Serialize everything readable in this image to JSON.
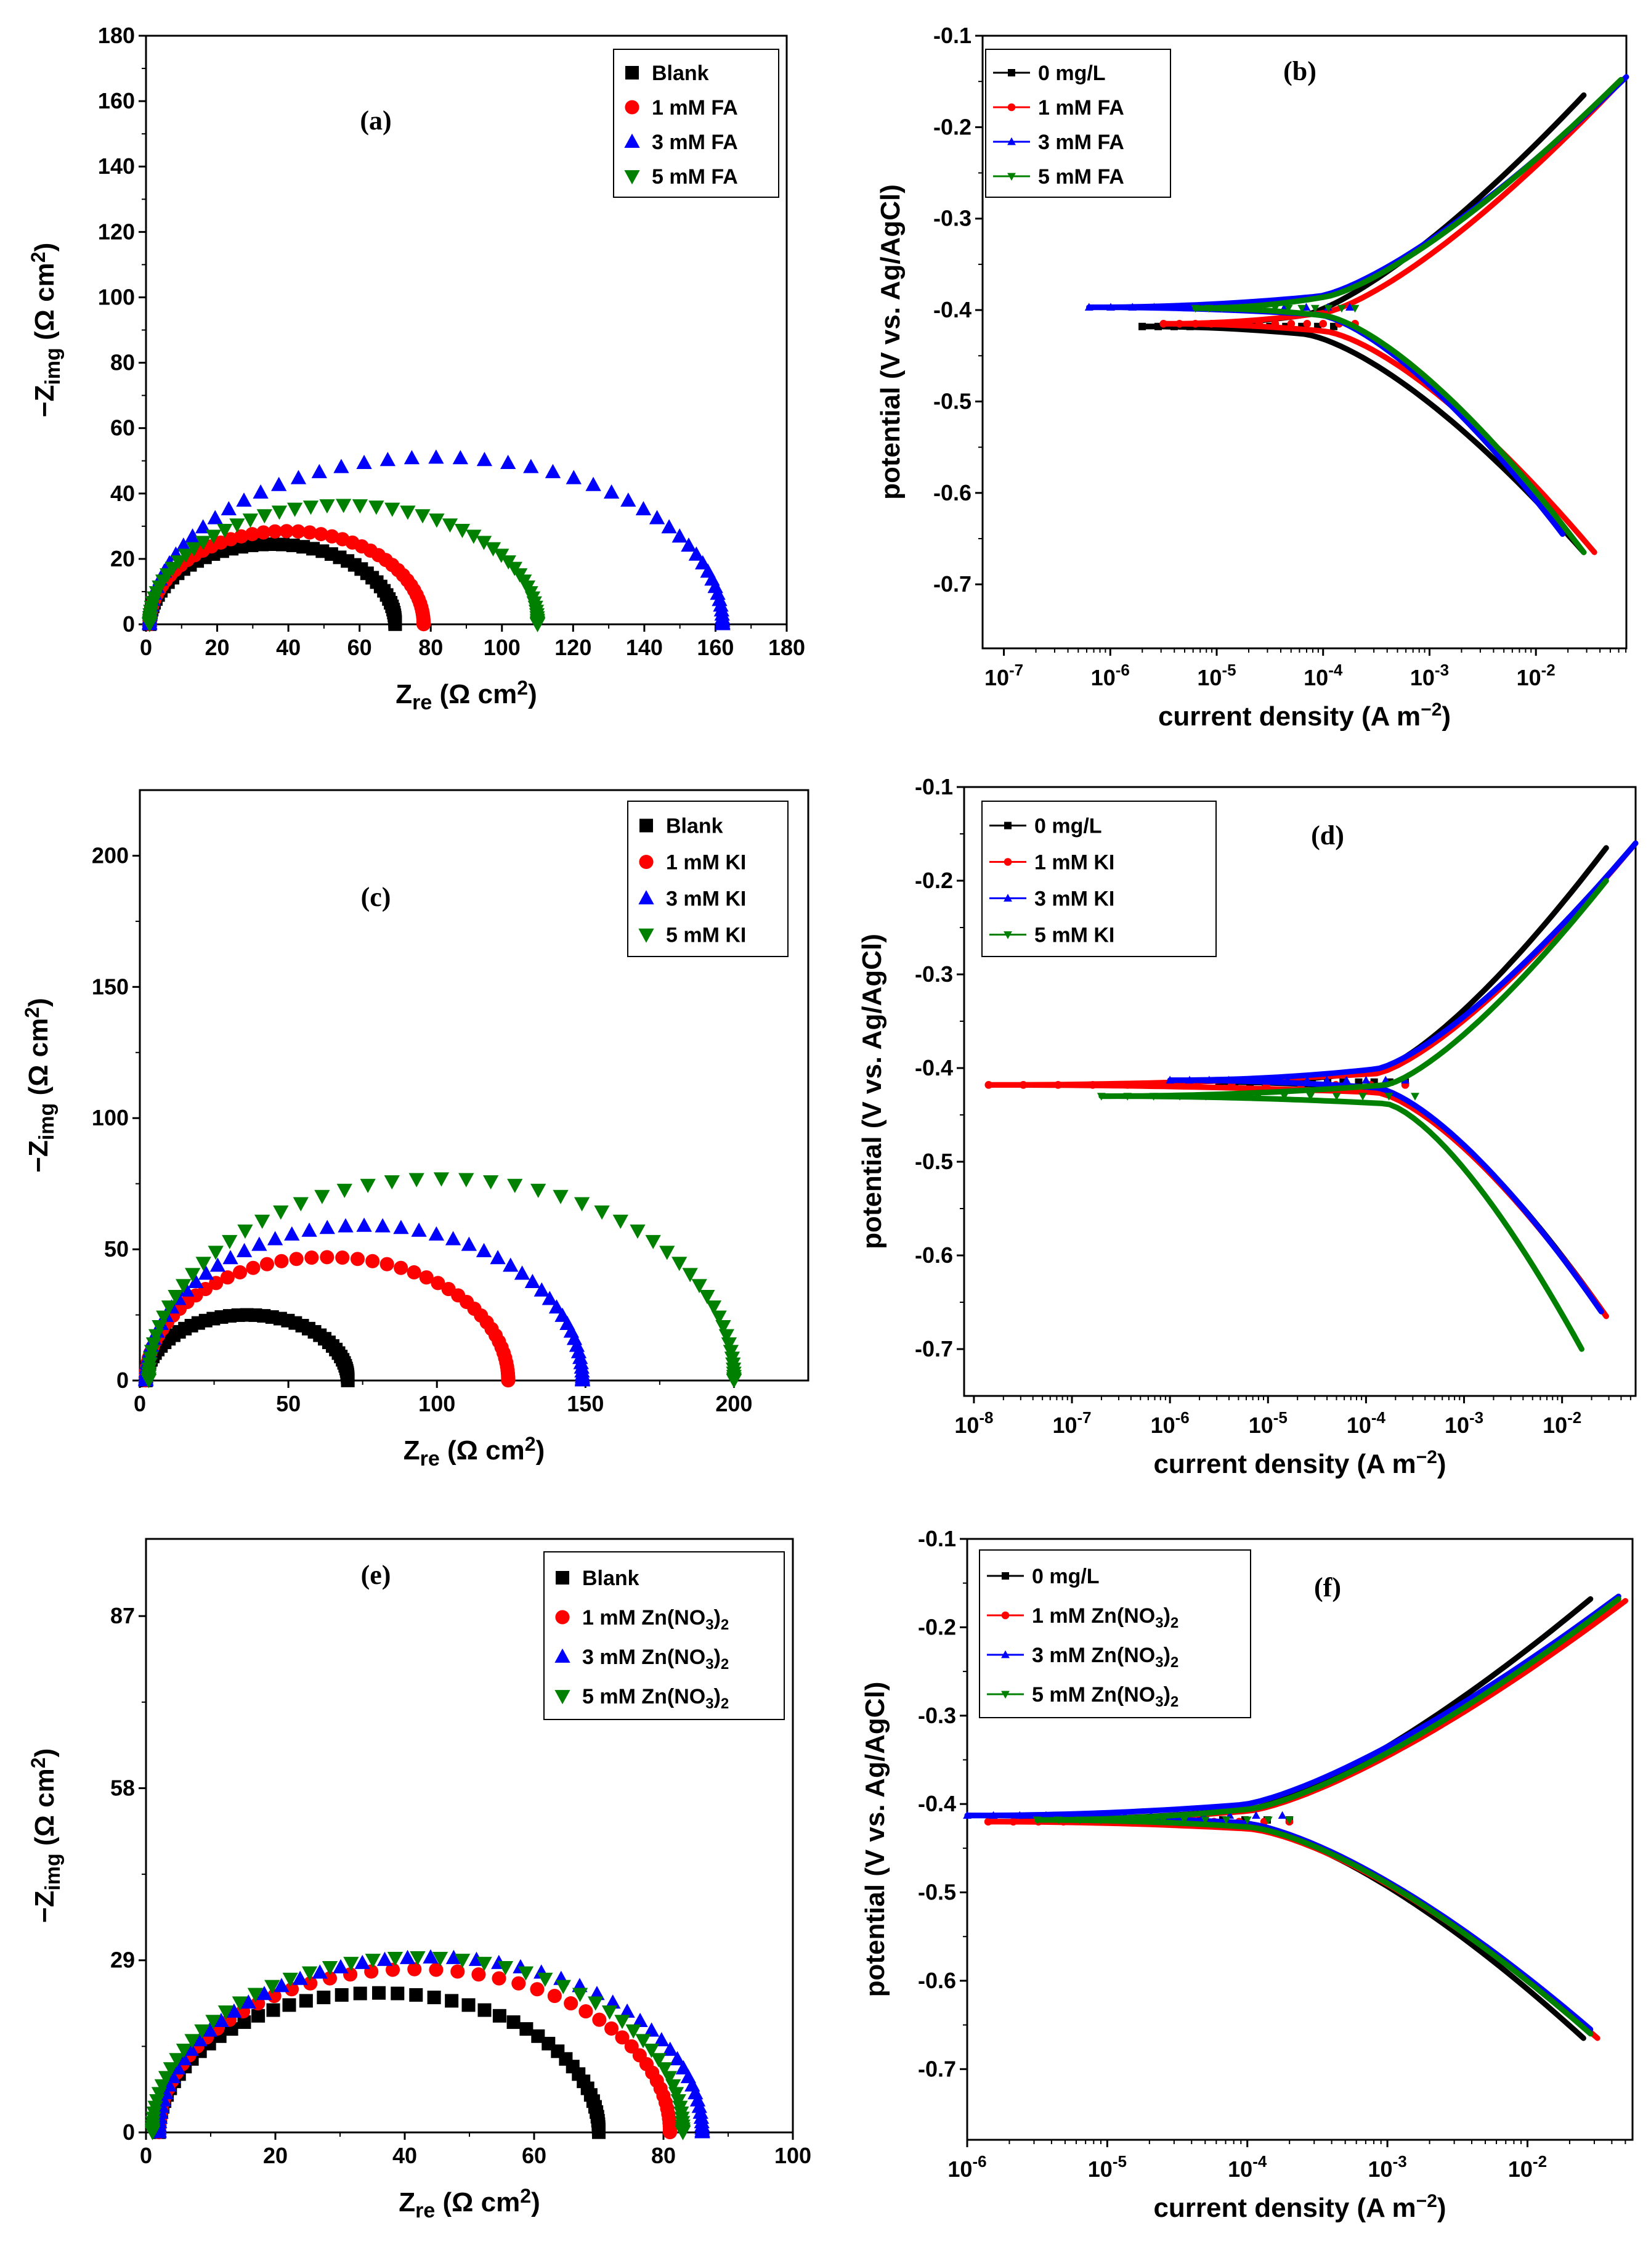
{
  "figure": {
    "colors": {
      "black": "#000000",
      "red": "#ff0000",
      "blue": "#0000ff",
      "green": "#008000"
    }
  },
  "chart_data": [
    {
      "id": "a",
      "type": "scatter",
      "panel_label": "(a)",
      "xlabel": "Zre (Ω cm2)",
      "ylabel": "−Zimg (Ω cm2)",
      "xlim": [
        0,
        180
      ],
      "ylim": [
        0,
        180
      ],
      "xticks": [
        0,
        20,
        40,
        60,
        80,
        100,
        120,
        140,
        160,
        180
      ],
      "yticks": [
        0,
        20,
        40,
        60,
        80,
        100,
        120,
        140,
        160,
        180
      ],
      "legend": {
        "position": "top-right",
        "style": "markers"
      },
      "series": [
        {
          "name": "Blank",
          "color": "#000000",
          "marker": "square",
          "x0": 1,
          "x1": 70,
          "peak": 24.5
        },
        {
          "name": "1 mM FA",
          "color": "#ff0000",
          "marker": "circle",
          "x0": 1,
          "x1": 78,
          "peak": 28.5
        },
        {
          "name": "3 mM FA",
          "color": "#0000ff",
          "marker": "triangle-up",
          "x0": 1,
          "x1": 162,
          "peak": 51
        },
        {
          "name": "5 mM FA",
          "color": "#008000",
          "marker": "triangle-down",
          "x0": 1,
          "x1": 110,
          "peak": 36.5
        }
      ]
    },
    {
      "id": "b",
      "type": "line",
      "panel_label": "(b)",
      "xlabel": "current density (A m−2)",
      "ylabel": "potential (V vs. Ag/AgCl)",
      "xscale": "log",
      "xlim": [
        -7.2,
        -1.15
      ],
      "ylim": [
        -0.77,
        -0.1
      ],
      "xticks": [
        -7,
        -6,
        -5,
        -4,
        -3,
        -2
      ],
      "xtick_labels": [
        "10-7",
        "10-6",
        "10-5",
        "10-4",
        "10-3",
        "10-2"
      ],
      "yticks": [
        -0.1,
        -0.2,
        -0.3,
        -0.4,
        -0.5,
        -0.6,
        -0.7
      ],
      "ytick_labels": [
        "-0.1",
        "-0.2",
        "-0.3",
        "-0.4",
        "-0.5",
        "-0.6",
        "-0.7"
      ],
      "legend": {
        "position": "top-left",
        "style": "line-marker"
      },
      "series": [
        {
          "name": "0 mg/L",
          "color": "#000000",
          "marker": "square",
          "ecorr": -0.418,
          "icorr_log": -4.2,
          "minlog": -5.7,
          "anodic_end": [
            -1.55,
            -0.165
          ],
          "cathodic_end": [
            -1.55,
            -0.665
          ]
        },
        {
          "name": "1 mM FA",
          "color": "#ff0000",
          "marker": "circle",
          "ecorr": -0.415,
          "icorr_log": -4.0,
          "minlog": -5.5,
          "anodic_end": [
            -1.2,
            -0.15
          ],
          "cathodic_end": [
            -1.45,
            -0.665
          ]
        },
        {
          "name": "3 mM FA",
          "color": "#0000ff",
          "marker": "triangle-up",
          "ecorr": -0.397,
          "icorr_log": -4.05,
          "minlog": -6.2,
          "anodic_end": [
            -1.15,
            -0.145
          ],
          "cathodic_end": [
            -1.75,
            -0.645
          ]
        },
        {
          "name": "5 mM FA",
          "color": "#008000",
          "marker": "triangle-down",
          "ecorr": -0.398,
          "icorr_log": -4.0,
          "minlog": -5.2,
          "anodic_end": [
            -1.2,
            -0.148
          ],
          "cathodic_end": [
            -1.55,
            -0.665
          ]
        }
      ]
    },
    {
      "id": "c",
      "type": "scatter",
      "panel_label": "(c)",
      "xlabel": "Zre (Ω cm2)",
      "ylabel": "−Zimg (Ω cm2)",
      "xlim": [
        0,
        225
      ],
      "ylim": [
        0,
        225
      ],
      "xticks": [
        0,
        50,
        100,
        150,
        200
      ],
      "yticks": [
        0,
        50,
        100,
        150,
        200
      ],
      "legend": {
        "position": "top-right",
        "style": "markers"
      },
      "series": [
        {
          "name": "Blank",
          "color": "#000000",
          "marker": "square",
          "x0": 2,
          "x1": 70,
          "peak": 25
        },
        {
          "name": "1 mM KI",
          "color": "#ff0000",
          "marker": "circle",
          "x0": 2,
          "x1": 124,
          "peak": 47
        },
        {
          "name": "3 mM KI",
          "color": "#0000ff",
          "marker": "triangle-up",
          "x0": 2,
          "x1": 149,
          "peak": 59
        },
        {
          "name": "5 mM KI",
          "color": "#008000",
          "marker": "triangle-down",
          "x0": 3,
          "x1": 200,
          "peak": 77
        }
      ]
    },
    {
      "id": "d",
      "type": "line",
      "panel_label": "(d)",
      "xlabel": "current density (A m−2)",
      "ylabel": "potential (V vs. Ag/AgCl)",
      "xscale": "log",
      "xlim": [
        -8.1,
        -1.25
      ],
      "ylim": [
        -0.75,
        -0.1
      ],
      "xticks": [
        -8,
        -7,
        -6,
        -5,
        -4,
        -3,
        -2
      ],
      "xtick_labels": [
        "10-8",
        "10-7",
        "10-6",
        "10-5",
        "10-4",
        "10-3",
        "10-2"
      ],
      "yticks": [
        -0.1,
        -0.2,
        -0.3,
        -0.4,
        -0.5,
        -0.6,
        -0.7
      ],
      "ytick_labels": [
        "-0.1",
        "-0.2",
        "-0.3",
        "-0.4",
        "-0.5",
        "-0.6",
        "-0.7"
      ],
      "legend": {
        "position": "top-left",
        "style": "line-marker"
      },
      "series": [
        {
          "name": "0 mg/L",
          "color": "#000000",
          "marker": "square",
          "ecorr": -0.415,
          "icorr_log": -3.9,
          "minlog": -5.5,
          "anodic_end": [
            -1.55,
            -0.165
          ],
          "cathodic_end": [
            -1.55,
            -0.665
          ]
        },
        {
          "name": "1 mM KI",
          "color": "#ff0000",
          "marker": "circle",
          "ecorr": -0.418,
          "icorr_log": -3.9,
          "minlog": -7.85,
          "anodic_end": [
            -1.25,
            -0.16
          ],
          "cathodic_end": [
            -1.55,
            -0.665
          ]
        },
        {
          "name": "3 mM KI",
          "color": "#0000ff",
          "marker": "triangle-up",
          "ecorr": -0.413,
          "icorr_log": -3.9,
          "minlog": -6.0,
          "anodic_end": [
            -1.25,
            -0.16
          ],
          "cathodic_end": [
            -1.6,
            -0.66
          ]
        },
        {
          "name": "5 mM KI",
          "color": "#008000",
          "marker": "triangle-down",
          "ecorr": -0.43,
          "icorr_log": -3.8,
          "minlog": -6.7,
          "anodic_end": [
            -1.55,
            -0.2
          ],
          "cathodic_end": [
            -1.8,
            -0.7
          ]
        }
      ]
    },
    {
      "id": "e",
      "type": "scatter",
      "panel_label": "(e)",
      "xlabel": "Zre (Ω cm2)",
      "ylabel": "−Zimg (Ω cm2)",
      "xlim": [
        0,
        100
      ],
      "ylim": [
        0,
        100
      ],
      "xticks": [
        0,
        20,
        40,
        60,
        80,
        100
      ],
      "yticks": [
        0,
        29,
        58,
        87
      ],
      "legend": {
        "position": "top-right",
        "style": "markers"
      },
      "series": [
        {
          "name": "Blank",
          "color": "#000000",
          "marker": "square",
          "x0": 2,
          "x1": 70,
          "peak": 23.5
        },
        {
          "name": "1 mM Zn(NO3)2",
          "color": "#ff0000",
          "marker": "circle",
          "x0": 2,
          "x1": 81,
          "peak": 27.5
        },
        {
          "name": "3 mM Zn(NO3)2",
          "color": "#0000ff",
          "marker": "triangle-up",
          "x0": 2,
          "x1": 86,
          "peak": 29.5
        },
        {
          "name": "5 mM Zn(NO3)2",
          "color": "#008000",
          "marker": "triangle-down",
          "x0": 1,
          "x1": 83,
          "peak": 29.5
        }
      ]
    },
    {
      "id": "f",
      "type": "line",
      "panel_label": "(f)",
      "xlabel": "current density (A m−2)",
      "ylabel": "potential (V vs. Ag/AgCl)",
      "xscale": "log",
      "xlim": [
        -6,
        -1.25
      ],
      "ylim": [
        -0.78,
        -0.1
      ],
      "xticks": [
        -6,
        -5,
        -4,
        -3,
        -2
      ],
      "xtick_labels": [
        "10-6",
        "10-5",
        "10-4",
        "10-3",
        "10-2"
      ],
      "yticks": [
        -0.1,
        -0.2,
        -0.3,
        -0.4,
        -0.5,
        -0.6,
        -0.7
      ],
      "ytick_labels": [
        "-0.1",
        "-0.2",
        "-0.3",
        "-0.4",
        "-0.5",
        "-0.6",
        "-0.7"
      ],
      "legend": {
        "position": "top-left",
        "style": "line-marker"
      },
      "series": [
        {
          "name": "0 mg/L",
          "color": "#000000",
          "marker": "square",
          "ecorr": -0.418,
          "icorr_log": -4.0,
          "minlog": -5.6,
          "anodic_end": [
            -1.55,
            -0.168
          ],
          "cathodic_end": [
            -1.6,
            -0.665
          ]
        },
        {
          "name": "1 mM Zn(NO3)2",
          "color": "#ff0000",
          "marker": "circle",
          "ecorr": -0.42,
          "icorr_log": -4.0,
          "minlog": -5.85,
          "anodic_end": [
            -1.3,
            -0.17
          ],
          "cathodic_end": [
            -1.5,
            -0.665
          ]
        },
        {
          "name": "3 mM Zn(NO3)2",
          "color": "#0000ff",
          "marker": "triangle-up",
          "ecorr": -0.413,
          "icorr_log": -4.05,
          "minlog": -6.0,
          "anodic_end": [
            -1.35,
            -0.165
          ],
          "cathodic_end": [
            -1.55,
            -0.655
          ]
        },
        {
          "name": "5 mM Zn(NO3)2",
          "color": "#008000",
          "marker": "triangle-down",
          "ecorr": -0.418,
          "icorr_log": -4.0,
          "minlog": -5.5,
          "anodic_end": [
            -1.35,
            -0.168
          ],
          "cathodic_end": [
            -1.55,
            -0.66
          ]
        }
      ]
    }
  ]
}
